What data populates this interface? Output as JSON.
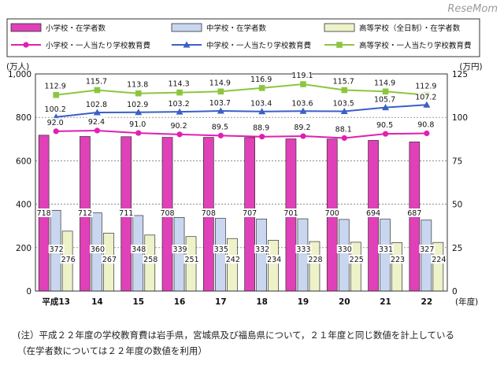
{
  "watermark": "ReseMom",
  "chart_data": {
    "type": "bar",
    "categories": [
      "平成13",
      "14",
      "15",
      "16",
      "17",
      "18",
      "19",
      "20",
      "21",
      "22"
    ],
    "x_unit": "(年度)",
    "left_axis": {
      "unit": "(万人)",
      "ylim": [
        0,
        1000
      ],
      "ticks": [
        "0",
        "200",
        "400",
        "600",
        "800",
        "1,000"
      ]
    },
    "right_axis": {
      "unit": "(万円)",
      "ylim": [
        0,
        125
      ],
      "ticks": [
        "0",
        "25",
        "50",
        "75",
        "100",
        "125"
      ]
    },
    "bar_series": [
      {
        "name": "小学校・在学者数",
        "color": "#e040b8",
        "values": [
          718,
          712,
          711,
          708,
          708,
          707,
          701,
          700,
          694,
          687
        ]
      },
      {
        "name": "中学校・在学者数",
        "color": "#c9d6f0",
        "values": [
          372,
          360,
          348,
          339,
          335,
          332,
          333,
          330,
          331,
          327
        ]
      },
      {
        "name": "高等学校（全日制）・在学者数",
        "color": "#eef2c8",
        "values": [
          276,
          267,
          258,
          251,
          242,
          234,
          228,
          225,
          223,
          224
        ]
      }
    ],
    "line_series": [
      {
        "name": "小学校・一人当たり学校教育費",
        "color": "#e020b0",
        "marker": "circle",
        "values": [
          92.0,
          92.4,
          91.0,
          90.2,
          89.5,
          88.9,
          89.2,
          88.1,
          90.5,
          90.8
        ]
      },
      {
        "name": "中学校・一人当たり学校教育費",
        "color": "#3a5fc8",
        "marker": "triangle",
        "values": [
          100.2,
          102.8,
          102.9,
          103.2,
          103.7,
          103.4,
          103.6,
          103.5,
          105.7,
          107.2
        ]
      },
      {
        "name": "高等学校・一人当たり学校教育費",
        "color": "#8cc63f",
        "marker": "square",
        "values": [
          112.9,
          115.7,
          113.8,
          114.3,
          114.9,
          116.9,
          119.1,
          115.7,
          114.9,
          112.9
        ]
      }
    ]
  },
  "notes": {
    "line1": "(注）平成２２年度の学校教育費は岩手県，宮城県及び福島県について，２１年度と同じ数値を計上している",
    "line2": "（在学者数については２２年度の数値を利用）"
  }
}
